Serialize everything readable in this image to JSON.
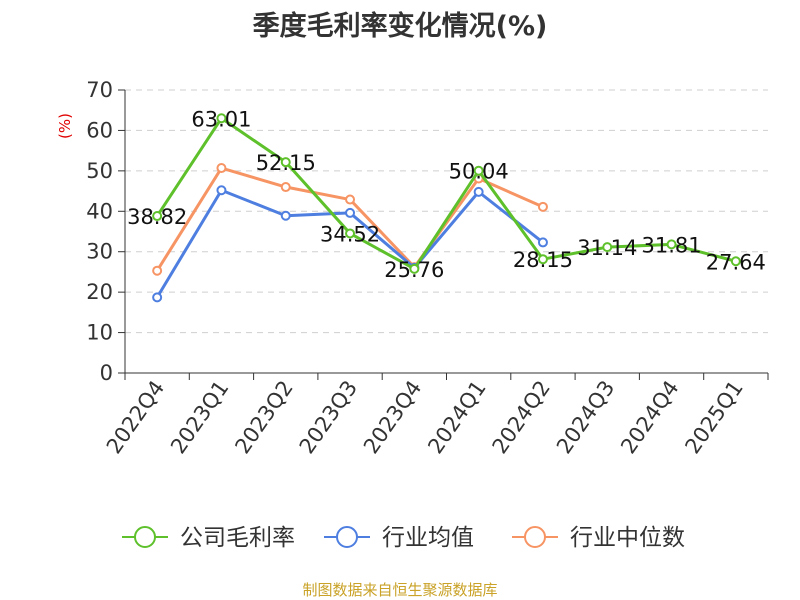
{
  "chart_data": {
    "type": "line",
    "title": "季度毛利率变化情况(%)",
    "ylabel": "(%)",
    "ylim": [
      0,
      70
    ],
    "yticks": [
      0,
      10,
      20,
      30,
      40,
      50,
      60,
      70
    ],
    "grid": true,
    "legend_position": "bottom",
    "categories": [
      "2022Q4",
      "2023Q1",
      "2023Q2",
      "2023Q3",
      "2023Q4",
      "2024Q1",
      "2024Q2",
      "2024Q3",
      "2024Q4",
      "2025Q1"
    ],
    "series": [
      {
        "name": "公司毛利率",
        "color": "#5ec12b",
        "values": [
          38.82,
          63.01,
          52.15,
          34.52,
          25.76,
          50.04,
          28.15,
          31.14,
          31.81,
          27.64
        ],
        "labels": [
          "38.82",
          "63.01",
          "52.15",
          "34.52",
          "25.76",
          "50.04",
          "28.15",
          "31.14",
          "31.81",
          "27.64"
        ]
      },
      {
        "name": "行业均值",
        "color": "#4e7fe0",
        "values": [
          18.7,
          45.2,
          38.9,
          39.6,
          26.0,
          44.8,
          32.3,
          null,
          null,
          null
        ]
      },
      {
        "name": "行业中位数",
        "color": "#f79464",
        "values": [
          25.3,
          50.7,
          46.0,
          42.9,
          26.2,
          48.1,
          41.1,
          null,
          null,
          null
        ]
      }
    ],
    "source": "制图数据来自恒生聚源数据库"
  }
}
